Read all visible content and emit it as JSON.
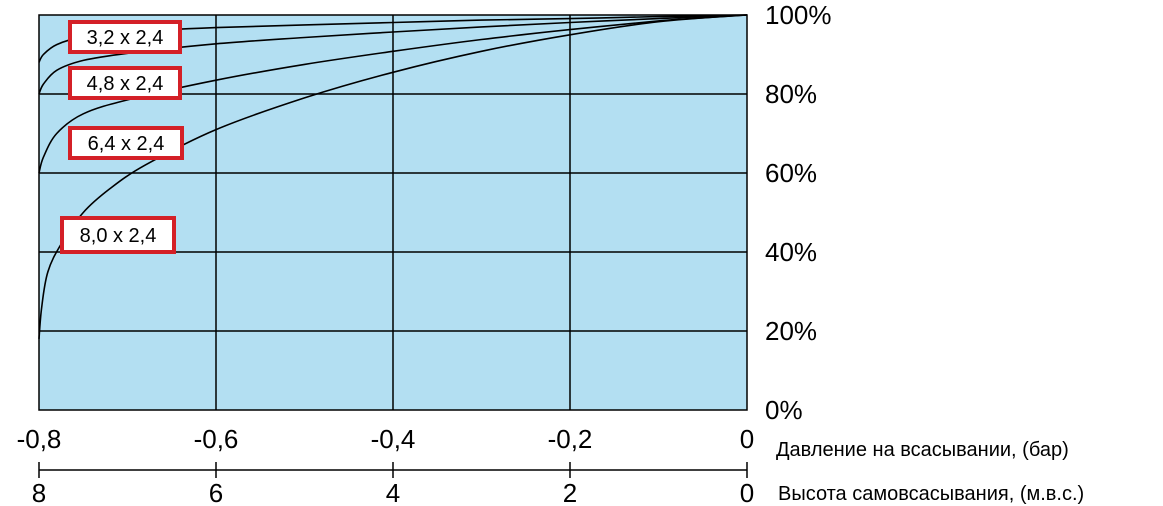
{
  "chart_data": {
    "type": "line",
    "colors": {
      "plot_bg": "#b3dff2",
      "grid": "#000000",
      "curve": "#000000",
      "label_border": "#d42027"
    },
    "x": {
      "label": "Давление на всасывании, (бар)",
      "range": [
        -0.8,
        0
      ],
      "ticks": [
        "-0,8",
        "-0,6",
        "-0,4",
        "-0,2",
        "0"
      ]
    },
    "x2": {
      "label": "Высота самовсасывания, (м.в.с.)",
      "range": [
        8,
        0
      ],
      "ticks": [
        "8",
        "6",
        "4",
        "2",
        "0"
      ]
    },
    "y": {
      "range": [
        0,
        100
      ],
      "ticks": [
        "0%",
        "20%",
        "40%",
        "60%",
        "80%",
        "100%"
      ]
    },
    "grid": true,
    "series": [
      {
        "name": "3,2 x 2,4",
        "x": [
          -0.8,
          -0.795,
          -0.78,
          -0.75,
          -0.7,
          -0.6,
          -0.5,
          -0.4,
          -0.3,
          -0.2,
          -0.1,
          -0.05,
          0
        ],
        "y": [
          88,
          90,
          92.5,
          94.5,
          95.7,
          96.8,
          97.5,
          98.1,
          98.7,
          99.1,
          99.6,
          99.8,
          100
        ]
      },
      {
        "name": "4,8 x 2,4",
        "x": [
          -0.8,
          -0.795,
          -0.78,
          -0.75,
          -0.7,
          -0.6,
          -0.5,
          -0.4,
          -0.3,
          -0.2,
          -0.1,
          -0.05,
          0
        ],
        "y": [
          80,
          82.5,
          86,
          88.5,
          90.3,
          92.7,
          94.3,
          95.7,
          97,
          98.1,
          99.1,
          99.6,
          100
        ]
      },
      {
        "name": "6,4 x 2,4",
        "x": [
          -0.8,
          -0.795,
          -0.78,
          -0.75,
          -0.7,
          -0.6,
          -0.5,
          -0.4,
          -0.3,
          -0.2,
          -0.1,
          -0.05,
          0
        ],
        "y": [
          60,
          64,
          70,
          75,
          78.5,
          83.5,
          87.5,
          90.8,
          93.8,
          96.3,
          98.5,
          99.3,
          100
        ]
      },
      {
        "name": "8,0 x 2,4",
        "x": [
          -0.8,
          -0.797,
          -0.79,
          -0.775,
          -0.75,
          -0.72,
          -0.68,
          -0.6,
          -0.5,
          -0.4,
          -0.3,
          -0.2,
          -0.1,
          0
        ],
        "y": [
          18,
          26,
          35,
          42,
          50,
          56,
          62,
          71,
          79,
          85.5,
          90.8,
          95,
          98.3,
          100
        ]
      }
    ]
  }
}
